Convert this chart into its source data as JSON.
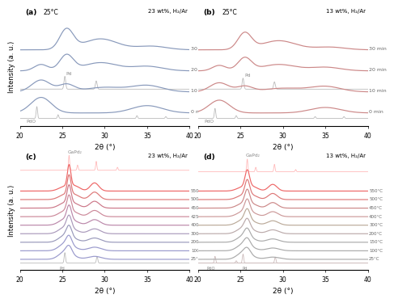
{
  "panel_a": {
    "label": "(a)",
    "title_left": "25°C",
    "title_right": "23 wt%, H₂/Ar",
    "color": "#8899bb",
    "curve_labels": [
      "0 min",
      "10 min",
      "20 min",
      "30 min"
    ],
    "ref_color_pdo": "#bbbbbb",
    "ref_color_pd": "#bbbbbb"
  },
  "panel_b": {
    "label": "(b)",
    "title_left": "25°C",
    "title_right": "13 wt%, H₂/Ar",
    "color": "#cc8888",
    "curve_labels": [
      "0 min",
      "10 min",
      "20 min",
      "30 min"
    ],
    "ref_color_pdo": "#bbbbbb",
    "ref_color_pd": "#bbbbbb"
  },
  "panel_c": {
    "label": "(c)",
    "title_right": "23 wt%, H₂/Ar",
    "curve_labels": [
      "25°C",
      "100°C",
      "200°C",
      "300°C",
      "400°C",
      "425°C",
      "450°C",
      "500°C",
      "550°C"
    ],
    "colors": [
      "#9999cc",
      "#9999cc",
      "#9999bb",
      "#aa99bb",
      "#bb88aa",
      "#cc8899",
      "#cc7788",
      "#dd7777",
      "#ee6666"
    ],
    "ref_color_pd": "#bbbbbb",
    "ref_color_gapd2": "#ffbbbb"
  },
  "panel_d": {
    "label": "(d)",
    "title_right": "13 wt%, H₂/Ar",
    "curve_labels": [
      "25°C",
      "100°C",
      "150°C",
      "200°C",
      "300°C",
      "400°C",
      "450°C",
      "500°C",
      "550°C"
    ],
    "colors": [
      "#aaaaaa",
      "#aaaaaa",
      "#aaaaaa",
      "#bbaaaa",
      "#bbaa99",
      "#cc9999",
      "#cc8888",
      "#dd7777",
      "#ee6666"
    ],
    "ref_color_pdo": "#ccbbbb",
    "ref_color_pd": "#ccbbbb",
    "ref_color_gapd2": "#ffbbbb"
  }
}
